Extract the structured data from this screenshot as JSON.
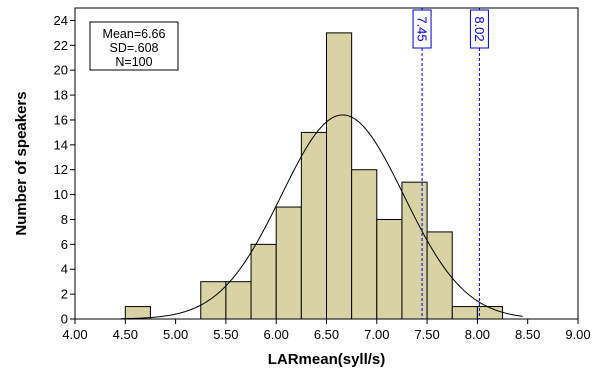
{
  "chart_data": {
    "type": "bar",
    "subtype": "histogram",
    "xlabel": "LARmean(syll/s)",
    "ylabel": "Number of speakers",
    "xlim": [
      4.0,
      9.0
    ],
    "ylim": [
      0,
      25
    ],
    "x_ticks": [
      "4.00",
      "4.50",
      "5.00",
      "5.50",
      "6.00",
      "6.50",
      "7.00",
      "7.50",
      "8.00",
      "8.50",
      "9.00"
    ],
    "y_ticks": [
      "0",
      "2",
      "4",
      "6",
      "8",
      "10",
      "12",
      "14",
      "16",
      "18",
      "20",
      "22",
      "24"
    ],
    "bins": [
      {
        "start": 4.5,
        "end": 4.75,
        "count": 1
      },
      {
        "start": 5.25,
        "end": 5.5,
        "count": 3
      },
      {
        "start": 5.5,
        "end": 5.75,
        "count": 3
      },
      {
        "start": 5.75,
        "end": 6.0,
        "count": 6
      },
      {
        "start": 6.0,
        "end": 6.25,
        "count": 9
      },
      {
        "start": 6.25,
        "end": 6.5,
        "count": 15
      },
      {
        "start": 6.5,
        "end": 6.75,
        "count": 23
      },
      {
        "start": 6.75,
        "end": 7.0,
        "count": 12
      },
      {
        "start": 7.0,
        "end": 7.25,
        "count": 8
      },
      {
        "start": 7.25,
        "end": 7.5,
        "count": 11
      },
      {
        "start": 7.5,
        "end": 7.75,
        "count": 7
      },
      {
        "start": 7.75,
        "end": 8.0,
        "count": 1
      },
      {
        "start": 8.0,
        "end": 8.25,
        "count": 1
      }
    ],
    "normal_curve": {
      "mean": 6.66,
      "sd": 0.608,
      "n": 100,
      "bin_width": 0.25
    },
    "stats_box": [
      "Mean=6.66",
      "SD=.608",
      "N=100"
    ],
    "reference_lines": [
      {
        "x": 7.45,
        "label": "7.45"
      },
      {
        "x": 8.02,
        "label": "8.02"
      }
    ],
    "grid": false,
    "colors": {
      "bar_fill": "#d8d3a4",
      "bar_stroke": "#000000",
      "reference_line": "#0000cc",
      "curve": "#000000"
    }
  }
}
